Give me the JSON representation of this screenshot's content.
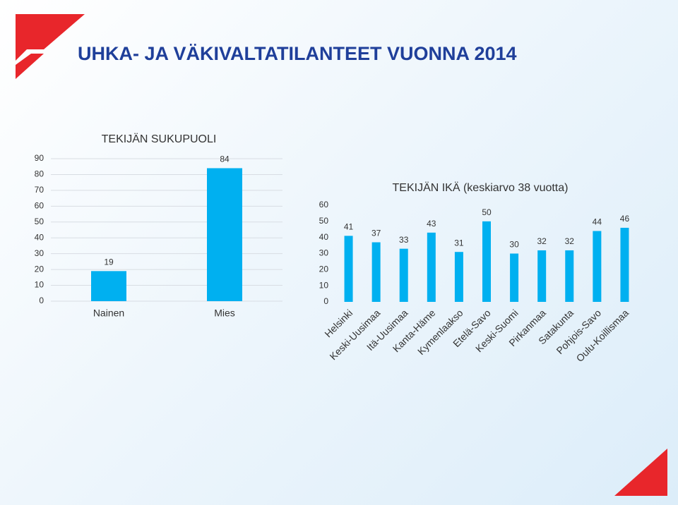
{
  "title": "UHKA- JA VÄKIVALTATILANTEET VUONNA 2014",
  "chart_data": [
    {
      "type": "bar",
      "title": "TEKIJÄN SUKUPUOLI",
      "categories": [
        "Nainen",
        "Mies"
      ],
      "values": [
        19,
        84
      ],
      "color": "#00b0f0",
      "ylim": [
        0,
        90
      ],
      "yticks": [
        0,
        10,
        20,
        30,
        40,
        50,
        60,
        70,
        80,
        90
      ],
      "grid": true
    },
    {
      "type": "bar",
      "title": "TEKIJÄN IKÄ (keskiarvo 38 vuotta)",
      "categories": [
        "Helsinki",
        "Keski-Uusimaa",
        "Itä-Uusimaa",
        "Kanta-Häme",
        "Kymenlaakso",
        "Etelä-Savo",
        "Keski-Suomi",
        "Pirkanmaa",
        "Satakunta",
        "Pohjois-Savo",
        "Oulu-Koillismaa"
      ],
      "values": [
        41,
        37,
        33,
        43,
        31,
        50,
        30,
        32,
        32,
        44,
        46
      ],
      "color": "#00b0f0",
      "ylim": [
        0,
        60
      ],
      "yticks": [
        0,
        10,
        20,
        30,
        40,
        50,
        60
      ],
      "grid": false
    }
  ]
}
